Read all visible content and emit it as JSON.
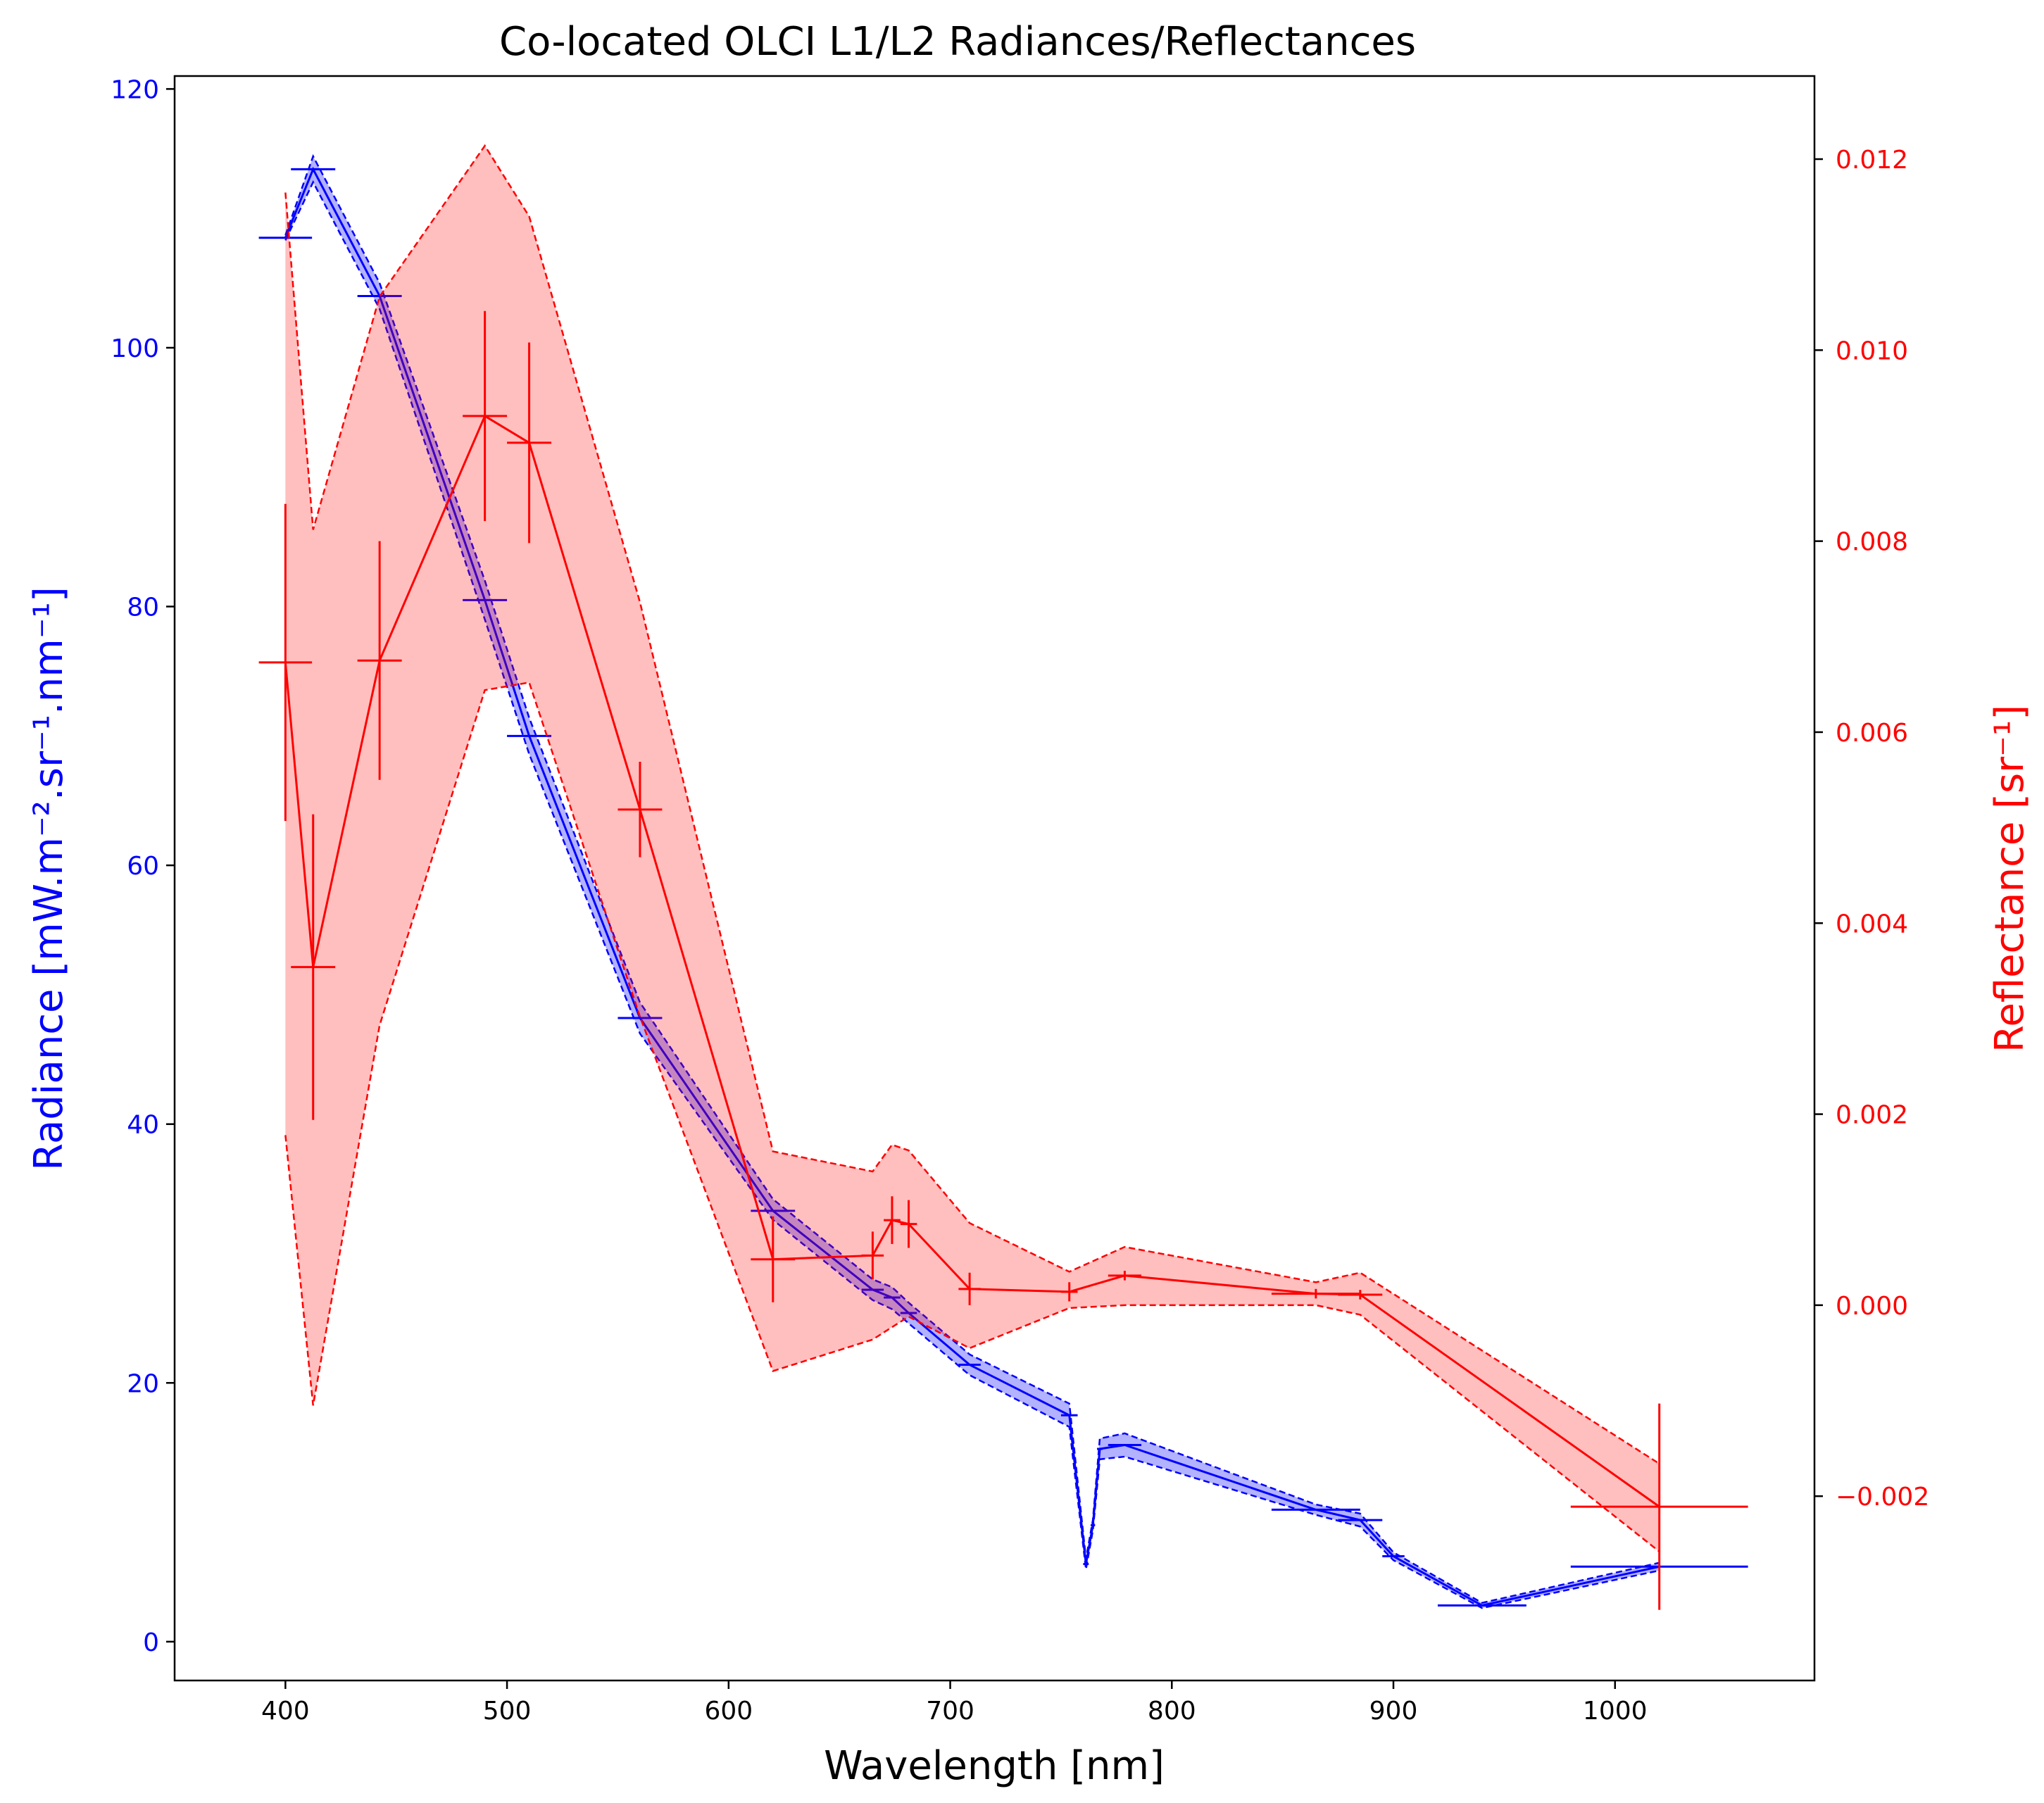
{
  "chart_data": {
    "type": "line",
    "title": "Co-located OLCI L1/L2 Radiances/Reflectances",
    "xlabel": "Wavelength [nm]",
    "ylabel_left": "Radiance [mW.m⁻².sr⁻¹.nm⁻¹]",
    "ylabel_right": "Reflectance [sr⁻¹]",
    "xlim": [
      350,
      1090
    ],
    "ylim_left": [
      -3,
      121
    ],
    "ylim_right": [
      -0.00393,
      0.01287
    ],
    "x_ticks": [
      400,
      500,
      600,
      700,
      800,
      900,
      1000
    ],
    "left_ticks": [
      0,
      20,
      40,
      60,
      80,
      100,
      120
    ],
    "right_ticks": [
      -0.002,
      0.0,
      0.002,
      0.004,
      0.006,
      0.008,
      0.01,
      0.012
    ],
    "right_tick_labels": [
      "−0.002",
      "0.000",
      "0.002",
      "0.004",
      "0.006",
      "0.008",
      "0.010",
      "0.012"
    ],
    "grid": false,
    "colors": {
      "radiance": "#0000ff",
      "reflectance": "#ff0000",
      "radiance_fill": "#0000ff",
      "reflectance_fill": "#ff0000"
    },
    "series": [
      {
        "name": "Radiance",
        "axis": "left",
        "x": [
          400,
          412.5,
          442.5,
          490,
          510,
          560,
          620,
          665,
          673.75,
          681.25,
          708.75,
          753.75,
          761.25,
          764.375,
          767.5,
          778.75,
          865,
          885,
          900,
          940,
          1020
        ],
        "y": [
          108.5,
          113.8,
          104.0,
          80.5,
          70.0,
          48.2,
          33.3,
          27.2,
          26.6,
          25.4,
          21.4,
          17.5,
          6.0,
          9.0,
          14.9,
          15.2,
          10.2,
          9.4,
          6.6,
          2.8,
          5.8
        ],
        "xerr": [
          12,
          10,
          10,
          10,
          10,
          10,
          10,
          5,
          3.75,
          3.75,
          5,
          3.75,
          1.25,
          1,
          1.25,
          7.5,
          20,
          10,
          5,
          20,
          40
        ],
        "band_low": [
          108.3,
          112.8,
          103.0,
          79.0,
          68.6,
          47.0,
          32.6,
          26.4,
          25.7,
          24.6,
          20.6,
          16.6,
          5.6,
          8.6,
          14.1,
          14.3,
          9.8,
          8.9,
          6.3,
          2.6,
          5.5
        ],
        "band_high": [
          108.7,
          114.8,
          105.0,
          82.0,
          71.4,
          49.4,
          34.2,
          28.0,
          27.4,
          26.2,
          22.2,
          18.4,
          6.4,
          9.4,
          15.7,
          16.1,
          10.6,
          9.9,
          6.9,
          3.0,
          6.1
        ]
      },
      {
        "name": "Reflectance",
        "axis": "right",
        "x": [
          400,
          412.5,
          442.5,
          490,
          510,
          560,
          620,
          665,
          673.75,
          681.25,
          708.75,
          753.75,
          778.75,
          865,
          885,
          1020
        ],
        "y": [
          0.00673,
          0.00354,
          0.00675,
          0.00931,
          0.00903,
          0.00519,
          0.00048,
          0.00052,
          0.00089,
          0.00085,
          0.00017,
          0.00014,
          0.00031,
          0.00012,
          0.00011,
          -0.00211
        ],
        "xerr": [
          12,
          10,
          10,
          10,
          10,
          10,
          10,
          5,
          3.75,
          3.75,
          5,
          3.75,
          7.5,
          20,
          10,
          40
        ],
        "yerr": [
          0.00166,
          0.0016,
          0.00125,
          0.0011,
          0.00105,
          0.0005,
          0.00045,
          0.00025,
          0.00025,
          0.00025,
          0.00017,
          0.0001,
          5e-05,
          5e-05,
          5e-05,
          0.00108
        ],
        "band_low": [
          0.00178,
          -0.00105,
          0.00293,
          0.00644,
          0.00652,
          0.00302,
          -0.00069,
          -0.00036,
          -0.00023,
          -0.00012,
          -0.00045,
          -3e-05,
          0.0,
          0.0,
          -0.0001,
          -0.00258
        ],
        "band_high": [
          0.01165,
          0.00812,
          0.01056,
          0.01214,
          0.0114,
          0.00736,
          0.00161,
          0.0014,
          0.00168,
          0.00162,
          0.00086,
          0.00035,
          0.00061,
          0.00024,
          0.00034,
          -0.00166
        ]
      }
    ]
  }
}
